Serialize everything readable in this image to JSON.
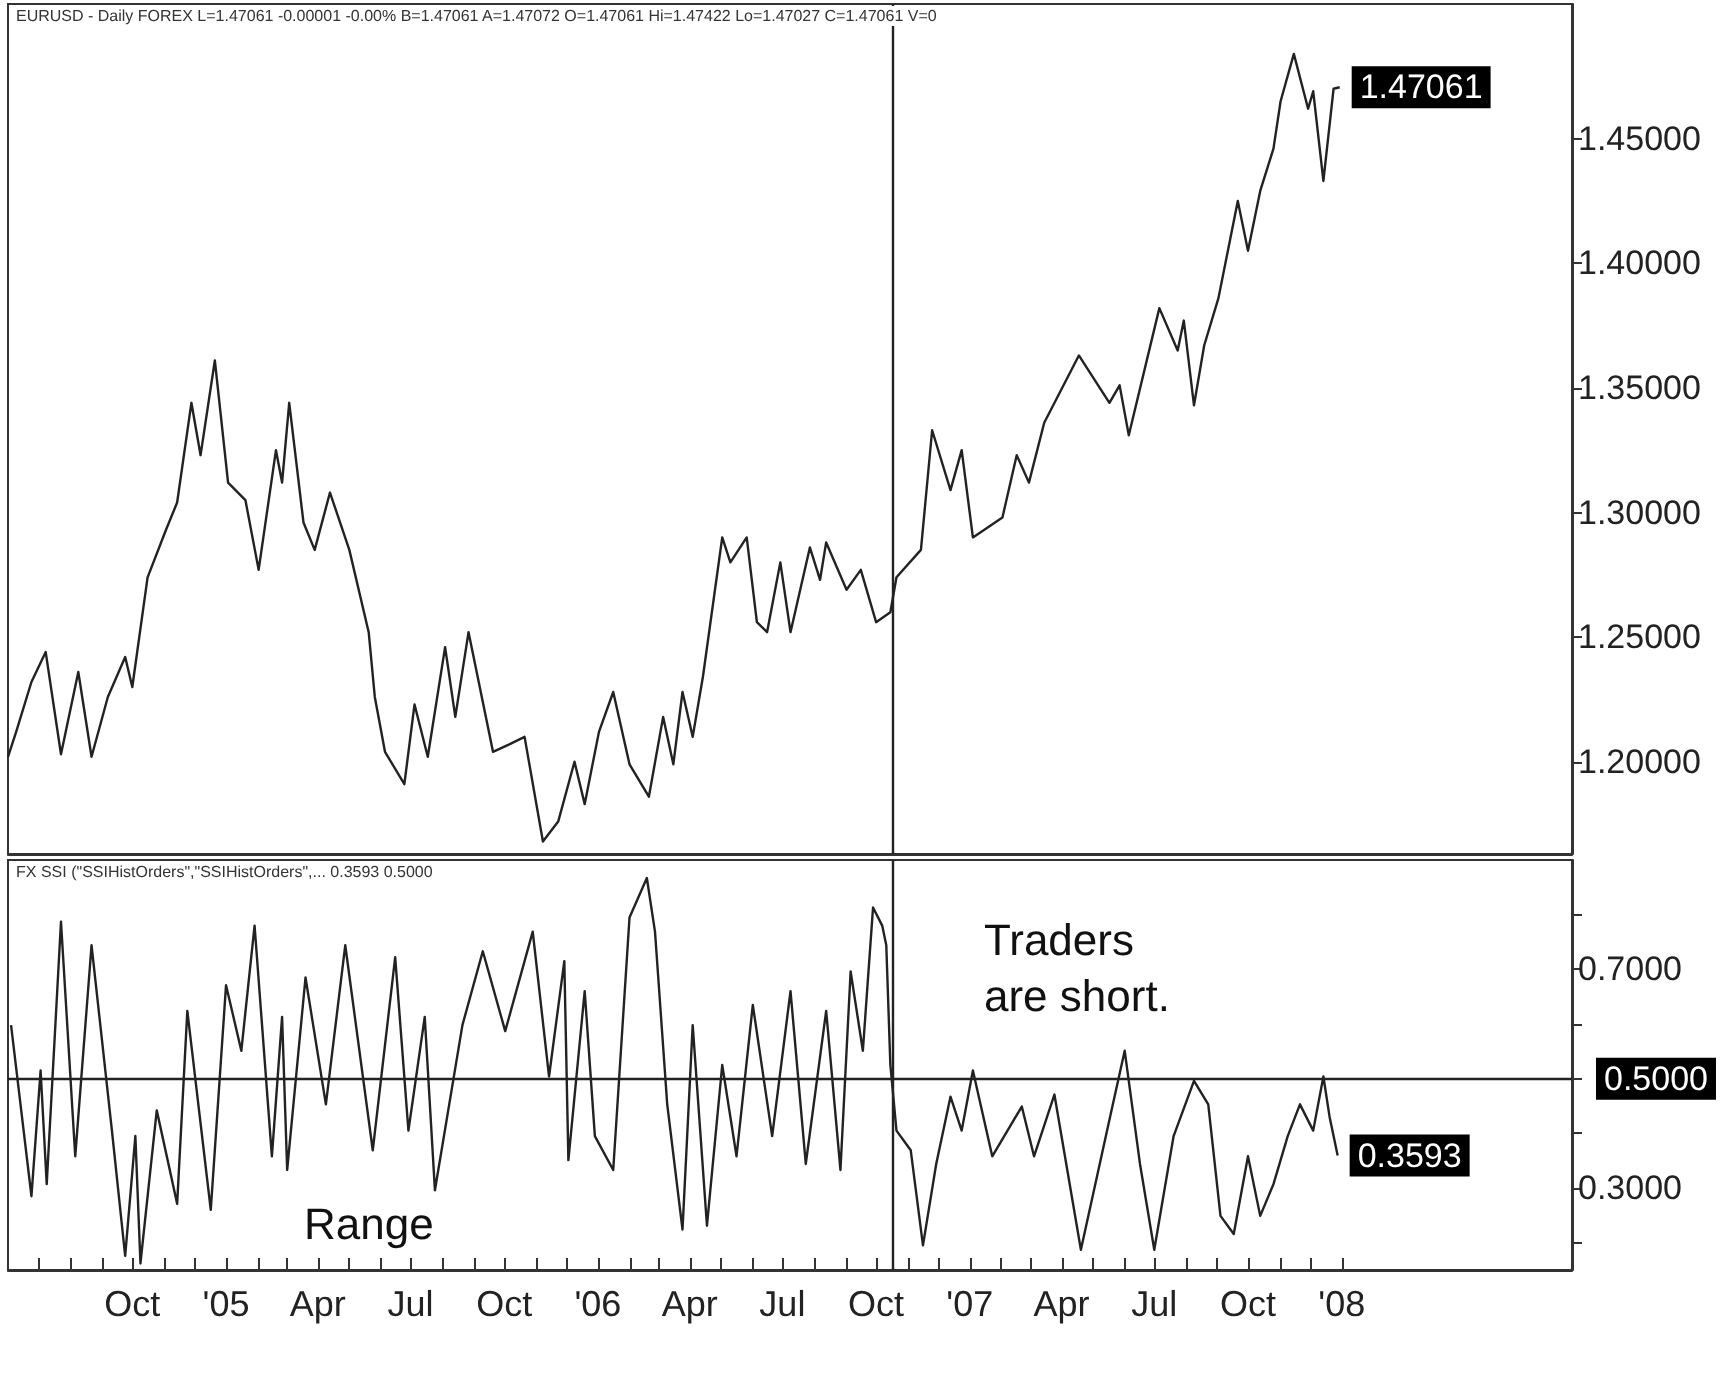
{
  "chart_data": [
    {
      "type": "line",
      "title": "EURUSD - Daily FOREX L=1.47061 -0.00001 -0.00% B=1.47061 A=1.47072 O=1.47061 Hi=1.47422 Lo=1.47027 C=1.47061 V=0",
      "x": [
        "2004-06-01",
        "2004-06-09",
        "2004-06-24",
        "2004-07-08",
        "2004-07-23",
        "2004-08-09",
        "2004-08-22",
        "2004-09-07",
        "2004-09-24",
        "2004-10-01",
        "2004-10-16",
        "2004-11-03",
        "2004-11-14",
        "2004-11-28",
        "2004-12-07",
        "2004-12-21",
        "2005-01-03",
        "2005-01-20",
        "2005-02-02",
        "2005-02-19",
        "2005-02-25",
        "2005-03-04",
        "2005-03-18",
        "2005-03-29",
        "2005-04-13",
        "2005-05-02",
        "2005-05-21",
        "2005-05-27",
        "2005-06-06",
        "2005-06-25",
        "2005-07-05",
        "2005-07-18",
        "2005-08-04",
        "2005-08-14",
        "2005-08-27",
        "2005-09-20",
        "2005-10-06",
        "2005-10-21",
        "2005-11-08",
        "2005-11-23",
        "2005-12-09",
        "2005-12-19",
        "2006-01-02",
        "2006-01-16",
        "2006-02-01",
        "2006-02-20",
        "2006-03-06",
        "2006-03-16",
        "2006-03-25",
        "2006-04-04",
        "2006-04-14",
        "2006-05-03",
        "2006-05-11",
        "2006-05-27",
        "2006-06-06",
        "2006-06-16",
        "2006-06-29",
        "2006-07-09",
        "2006-07-28",
        "2006-08-07",
        "2006-08-13",
        "2006-09-02",
        "2006-09-16",
        "2006-10-01",
        "2006-10-15",
        "2006-10-21",
        "2006-11-14",
        "2006-11-25",
        "2006-12-13",
        "2006-12-24",
        "2007-01-04",
        "2007-02-02",
        "2007-02-16",
        "2007-02-28",
        "2007-03-15",
        "2007-04-18",
        "2007-05-18",
        "2007-05-28",
        "2007-06-06",
        "2007-07-06",
        "2007-07-24",
        "2007-07-30",
        "2007-08-09",
        "2007-08-19",
        "2007-09-02",
        "2007-09-21",
        "2007-10-01",
        "2007-10-13",
        "2007-10-26",
        "2007-11-02",
        "2007-11-15",
        "2007-11-29",
        "2007-12-04",
        "2007-12-14",
        "2007-12-24",
        "2007-12-30"
      ],
      "series": [
        {
          "color": "#222222",
          "values": [
            1.202,
            1.212,
            1.232,
            1.244,
            1.203,
            1.236,
            1.202,
            1.226,
            1.242,
            1.23,
            1.274,
            1.293,
            1.304,
            1.344,
            1.323,
            1.361,
            1.312,
            1.305,
            1.277,
            1.325,
            1.312,
            1.344,
            1.296,
            1.285,
            1.308,
            1.285,
            1.252,
            1.226,
            1.204,
            1.191,
            1.223,
            1.202,
            1.246,
            1.218,
            1.252,
            1.204,
            1.207,
            1.21,
            1.168,
            1.176,
            1.2,
            1.183,
            1.212,
            1.228,
            1.199,
            1.186,
            1.218,
            1.199,
            1.228,
            1.21,
            1.234,
            1.29,
            1.28,
            1.29,
            1.256,
            1.252,
            1.28,
            1.252,
            1.286,
            1.273,
            1.288,
            1.269,
            1.277,
            1.256,
            1.26,
            1.274,
            1.285,
            1.333,
            1.309,
            1.325,
            1.29,
            1.298,
            1.323,
            1.312,
            1.336,
            1.363,
            1.344,
            1.351,
            1.331,
            1.382,
            1.365,
            1.377,
            1.343,
            1.367,
            1.386,
            1.425,
            1.405,
            1.429,
            1.446,
            1.465,
            1.484,
            1.462,
            1.469,
            1.433,
            1.47,
            1.47061
          ],
          "value_labels": [
            null,
            null,
            null,
            null,
            null,
            null,
            null,
            null,
            null,
            null,
            null,
            null,
            null,
            null,
            null,
            null,
            null,
            null,
            null,
            null,
            null,
            null,
            null,
            null,
            null,
            null,
            null,
            null,
            null,
            null,
            null,
            null,
            null,
            null,
            null,
            null,
            null,
            null,
            null,
            null,
            null,
            null,
            null,
            null,
            null,
            null,
            null,
            null,
            null,
            null,
            null,
            null,
            null,
            null,
            null,
            null,
            null,
            null,
            null,
            null,
            null,
            null,
            null,
            null,
            null,
            null,
            null,
            null,
            null,
            null,
            null,
            null,
            null,
            null,
            null,
            null,
            null,
            null,
            null,
            null,
            null,
            null,
            null,
            null,
            null,
            null,
            null,
            null,
            null,
            null,
            null,
            null,
            null,
            null,
            null,
            "1.47061"
          ]
        }
      ],
      "xlim": [
        "2004-06-01",
        "2008-08-14"
      ],
      "ylim": [
        1.163,
        1.504
      ],
      "yticks": [
        {
          "value": 1.2,
          "label": "1.20000"
        },
        {
          "value": 1.25,
          "label": "1.25000"
        },
        {
          "value": 1.3,
          "label": "1.30000"
        },
        {
          "value": 1.35,
          "label": "1.35000"
        },
        {
          "value": 1.4,
          "label": "1.40000"
        },
        {
          "value": 1.45,
          "label": "1.45000"
        }
      ],
      "tick_labels": "y",
      "ref_lines": [
        {
          "axis": "x",
          "value": "2006-10-17",
          "label": null,
          "color": "#222222"
        }
      ]
    },
    {
      "type": "line",
      "title": "FX SSI (\"SSIHistOrders\",\"SSIHistOrders\",... 0.3593 0.5000",
      "annotations": [
        "Traders are short.",
        "Range"
      ],
      "x": [
        "2004-06-04",
        "2004-06-24",
        "2004-07-03",
        "2004-07-09",
        "2004-07-23",
        "2004-08-06",
        "2004-08-22",
        "2004-09-11",
        "2004-09-24",
        "2004-10-04",
        "2004-10-09",
        "2004-10-25",
        "2004-11-14",
        "2004-11-24",
        "2004-12-17",
        "2005-01-01",
        "2005-01-16",
        "2005-01-29",
        "2005-02-15",
        "2005-02-25",
        "2005-03-02",
        "2005-03-20",
        "2005-04-09",
        "2005-04-28",
        "2005-05-25",
        "2005-06-16",
        "2005-06-29",
        "2005-07-15",
        "2005-07-25",
        "2005-08-21",
        "2005-09-10",
        "2005-10-02",
        "2005-10-29",
        "2005-11-14",
        "2005-11-29",
        "2005-12-03",
        "2005-12-19",
        "2005-12-29",
        "2006-01-16",
        "2006-02-01",
        "2006-02-18",
        "2006-02-26",
        "2006-03-10",
        "2006-03-25",
        "2006-04-04",
        "2006-04-18",
        "2006-05-03",
        "2006-05-17",
        "2006-06-02",
        "2006-06-21",
        "2006-07-09",
        "2006-07-24",
        "2006-08-13",
        "2006-08-27",
        "2006-09-06",
        "2006-09-18",
        "2006-09-28",
        "2006-10-07",
        "2006-10-11",
        "2006-10-15",
        "2006-10-21",
        "2006-11-04",
        "2006-11-16",
        "2006-11-29",
        "2006-12-13",
        "2006-12-24",
        "2007-01-04",
        "2007-01-23",
        "2007-02-21",
        "2007-03-05",
        "2007-03-25",
        "2007-04-20",
        "2007-05-17",
        "2007-06-02",
        "2007-06-17",
        "2007-07-01",
        "2007-07-20",
        "2007-08-09",
        "2007-08-23",
        "2007-09-04",
        "2007-09-17",
        "2007-10-01",
        "2007-10-13",
        "2007-10-26",
        "2007-11-09",
        "2007-11-21",
        "2007-12-04",
        "2007-12-14",
        "2007-12-20",
        "2007-12-28"
      ],
      "series": [
        {
          "color": "#222222",
          "values": [
            0.598,
            0.285,
            0.515,
            0.307,
            0.787,
            0.358,
            0.744,
            0.405,
            0.176,
            0.395,
            0.162,
            0.442,
            0.271,
            0.624,
            0.26,
            0.671,
            0.551,
            0.78,
            0.358,
            0.613,
            0.333,
            0.685,
            0.453,
            0.744,
            0.369,
            0.722,
            0.405,
            0.613,
            0.296,
            0.598,
            0.733,
            0.587,
            0.769,
            0.504,
            0.715,
            0.351,
            0.66,
            0.395,
            0.333,
            0.795,
            0.867,
            0.769,
            0.453,
            0.224,
            0.598,
            0.231,
            0.525,
            0.358,
            0.635,
            0.395,
            0.66,
            0.344,
            0.624,
            0.333,
            0.696,
            0.551,
            0.813,
            0.78,
            0.744,
            0.525,
            0.405,
            0.369,
            0.195,
            0.344,
            0.467,
            0.405,
            0.515,
            0.358,
            0.449,
            0.358,
            0.471,
            0.187,
            0.416,
            0.551,
            0.344,
            0.187,
            0.395,
            0.496,
            0.453,
            0.249,
            0.216,
            0.358,
            0.249,
            0.307,
            0.395,
            0.453,
            0.405,
            0.504,
            0.431,
            0.3593
          ],
          "value_labels": [
            null,
            null,
            null,
            null,
            null,
            null,
            null,
            null,
            null,
            null,
            null,
            null,
            null,
            null,
            null,
            null,
            null,
            null,
            null,
            null,
            null,
            null,
            null,
            null,
            null,
            null,
            null,
            null,
            null,
            null,
            null,
            null,
            null,
            null,
            null,
            null,
            null,
            null,
            null,
            null,
            null,
            null,
            null,
            null,
            null,
            null,
            null,
            null,
            null,
            null,
            null,
            null,
            null,
            null,
            null,
            null,
            null,
            null,
            null,
            null,
            null,
            null,
            null,
            null,
            null,
            null,
            null,
            null,
            null,
            null,
            null,
            null,
            null,
            null,
            null,
            null,
            null,
            null,
            null,
            null,
            null,
            null,
            null,
            null,
            null,
            null,
            null,
            null,
            null,
            "0.3593"
          ]
        }
      ],
      "xlim": [
        "2004-06-01",
        "2008-08-14"
      ],
      "ylim": [
        0.15,
        0.9
      ],
      "yticks": [
        {
          "value": 0.2,
          "label": null
        },
        {
          "value": 0.3,
          "label": "0.3000"
        },
        {
          "value": 0.4,
          "label": null
        },
        {
          "value": 0.5,
          "label": null
        },
        {
          "value": 0.6,
          "label": null
        },
        {
          "value": 0.7,
          "label": "0.7000"
        },
        {
          "value": 0.8,
          "label": null
        }
      ],
      "xticks": [
        {
          "value": "2004-07-01",
          "label": null
        },
        {
          "value": "2004-08-01",
          "label": null
        },
        {
          "value": "2004-09-01",
          "label": null
        },
        {
          "value": "2004-10-01",
          "label": "Oct"
        },
        {
          "value": "2004-11-01",
          "label": null
        },
        {
          "value": "2004-12-01",
          "label": null
        },
        {
          "value": "2005-01-01",
          "label": "'05"
        },
        {
          "value": "2005-02-01",
          "label": null
        },
        {
          "value": "2005-03-01",
          "label": null
        },
        {
          "value": "2005-04-01",
          "label": "Apr"
        },
        {
          "value": "2005-05-01",
          "label": null
        },
        {
          "value": "2005-06-01",
          "label": null
        },
        {
          "value": "2005-07-01",
          "label": "Jul"
        },
        {
          "value": "2005-08-01",
          "label": null
        },
        {
          "value": "2005-09-01",
          "label": null
        },
        {
          "value": "2005-10-01",
          "label": "Oct"
        },
        {
          "value": "2005-11-01",
          "label": null
        },
        {
          "value": "2005-12-01",
          "label": null
        },
        {
          "value": "2006-01-01",
          "label": "'06"
        },
        {
          "value": "2006-02-01",
          "label": null
        },
        {
          "value": "2006-03-01",
          "label": null
        },
        {
          "value": "2006-04-01",
          "label": "Apr"
        },
        {
          "value": "2006-05-01",
          "label": null
        },
        {
          "value": "2006-06-01",
          "label": null
        },
        {
          "value": "2006-07-01",
          "label": "Jul"
        },
        {
          "value": "2006-08-01",
          "label": null
        },
        {
          "value": "2006-09-01",
          "label": null
        },
        {
          "value": "2006-10-01",
          "label": "Oct"
        },
        {
          "value": "2006-11-01",
          "label": null
        },
        {
          "value": "2006-12-01",
          "label": null
        },
        {
          "value": "2007-01-01",
          "label": "'07"
        },
        {
          "value": "2007-02-01",
          "label": null
        },
        {
          "value": "2007-03-01",
          "label": null
        },
        {
          "value": "2007-04-01",
          "label": "Apr"
        },
        {
          "value": "2007-05-01",
          "label": null
        },
        {
          "value": "2007-06-01",
          "label": null
        },
        {
          "value": "2007-07-01",
          "label": "Jul"
        },
        {
          "value": "2007-08-01",
          "label": null
        },
        {
          "value": "2007-09-01",
          "label": null
        },
        {
          "value": "2007-10-01",
          "label": "Oct"
        },
        {
          "value": "2007-11-01",
          "label": null
        },
        {
          "value": "2007-12-01",
          "label": null
        },
        {
          "value": "2008-01-01",
          "label": "'08"
        }
      ],
      "ref_lines": [
        {
          "axis": "y",
          "value": 0.5,
          "label": "0.5000",
          "color": "#222222"
        },
        {
          "axis": "x",
          "value": "2006-10-17",
          "label": null,
          "color": "#222222"
        }
      ]
    }
  ]
}
